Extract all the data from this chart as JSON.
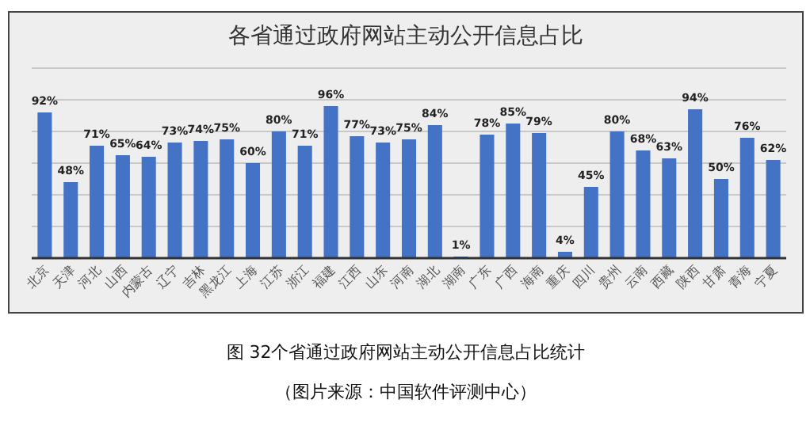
{
  "chart_data": {
    "type": "bar",
    "title": "各省通过政府网站主动公开信息占比",
    "categories": [
      "北京",
      "天津",
      "河北",
      "山西",
      "内蒙古",
      "辽宁",
      "吉林",
      "黑龙江",
      "上海",
      "江苏",
      "浙江",
      "福建",
      "江西",
      "山东",
      "河南",
      "湖北",
      "湖南",
      "广东",
      "广西",
      "海南",
      "重庆",
      "四川",
      "贵州",
      "云南",
      "西藏",
      "陕西",
      "甘肃",
      "青海",
      "宁夏"
    ],
    "values": [
      92,
      48,
      71,
      65,
      64,
      73,
      74,
      75,
      60,
      80,
      71,
      96,
      77,
      73,
      75,
      84,
      1,
      78,
      85,
      79,
      4,
      45,
      80,
      68,
      63,
      94,
      50,
      76,
      62
    ],
    "value_labels": [
      "92%",
      "48%",
      "71%",
      "65%",
      "64%",
      "73%",
      "74%",
      "75%",
      "60%",
      "80%",
      "71%",
      "96%",
      "77%",
      "73%",
      "75%",
      "84%",
      "1%",
      "78%",
      "85%",
      "79%",
      "4%",
      "45%",
      "80%",
      "68%",
      "63%",
      "94%",
      "50%",
      "76%",
      "62%"
    ],
    "color": "#4472c4",
    "ylim": [
      0,
      120
    ],
    "yticks": [
      {
        "value": 0,
        "label": null
      },
      {
        "value": 20,
        "label": null
      },
      {
        "value": 40,
        "label": null
      },
      {
        "value": 60,
        "label": null
      },
      {
        "value": 80,
        "label": null
      },
      {
        "value": 100,
        "label": null
      },
      {
        "value": 120,
        "label": null
      }
    ],
    "grid": "y",
    "tick_labels": "x",
    "annotations": [
      "图  32个省通过政府网站主动公开信息占比统计",
      "（图片来源：中国软件评测中心）"
    ]
  }
}
